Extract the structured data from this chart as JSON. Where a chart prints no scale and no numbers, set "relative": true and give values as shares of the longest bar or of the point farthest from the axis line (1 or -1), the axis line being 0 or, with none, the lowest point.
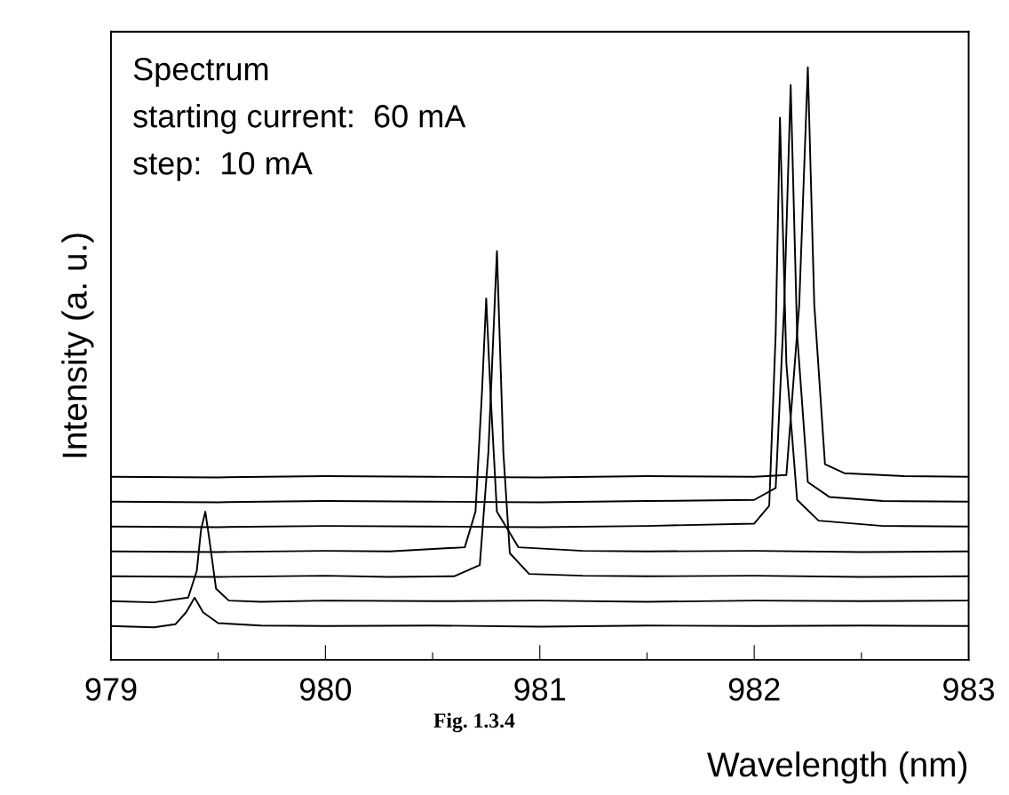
{
  "chart_data": {
    "type": "line",
    "relative": true,
    "xlabel": "Wavelength (nm)",
    "ylabel": "Intensity (a. u.)",
    "xlim": [
      979,
      983
    ],
    "xticks": [
      979,
      {
        "value": 979.5,
        "label": null
      },
      980,
      {
        "value": 980.5,
        "label": null
      },
      981,
      {
        "value": 981.5,
        "label": null
      },
      982,
      {
        "value": 982.5,
        "label": null
      },
      983
    ],
    "grid": false,
    "marker": "none",
    "line_style": "solid",
    "annotations": [
      "Spectrum",
      "starting current:  60 mA",
      "step:  10 mA",
      "Fig. 1.3.4"
    ],
    "series": [
      {
        "color": "#000000",
        "x": [
          979.0,
          979.2,
          979.3,
          979.35,
          979.39,
          979.43,
          979.5,
          979.7,
          980.0,
          980.5,
          981.0,
          981.5,
          982.0,
          982.5,
          983.0
        ],
        "values": [
          0.057,
          0.055,
          0.06,
          0.08,
          0.105,
          0.08,
          0.062,
          0.058,
          0.057,
          0.058,
          0.056,
          0.058,
          0.057,
          0.058,
          0.057
        ]
      },
      {
        "color": "#000000",
        "x": [
          979.0,
          979.2,
          979.36,
          979.4,
          979.42,
          979.44,
          979.46,
          979.49,
          979.55,
          979.7,
          980.0,
          980.5,
          981.0,
          981.5,
          982.0,
          982.5,
          983.0
        ],
        "values": [
          0.099,
          0.097,
          0.105,
          0.15,
          0.22,
          0.25,
          0.2,
          0.12,
          0.1,
          0.098,
          0.1,
          0.099,
          0.1,
          0.098,
          0.1,
          0.099,
          0.1
        ]
      },
      {
        "color": "#000000",
        "x": [
          979.0,
          979.5,
          980.0,
          980.3,
          980.6,
          980.72,
          980.76,
          980.8,
          980.83,
          980.86,
          980.95,
          981.2,
          981.5,
          982.0,
          982.5,
          983.0
        ],
        "values": [
          0.141,
          0.14,
          0.142,
          0.14,
          0.141,
          0.16,
          0.35,
          0.69,
          0.35,
          0.18,
          0.145,
          0.142,
          0.141,
          0.142,
          0.14,
          0.141
        ]
      },
      {
        "color": "#000000",
        "x": [
          979.0,
          979.5,
          980.0,
          980.3,
          980.65,
          980.7,
          980.73,
          980.75,
          980.77,
          980.8,
          980.9,
          981.2,
          981.5,
          982.0,
          982.5,
          983.0
        ],
        "values": [
          0.183,
          0.182,
          0.184,
          0.183,
          0.19,
          0.25,
          0.45,
          0.61,
          0.45,
          0.25,
          0.19,
          0.184,
          0.183,
          0.184,
          0.182,
          0.183
        ]
      },
      {
        "color": "#000000",
        "x": [
          979.0,
          979.5,
          980.0,
          980.5,
          981.0,
          981.5,
          982.0,
          982.07,
          982.1,
          982.12,
          982.15,
          982.2,
          982.3,
          982.6,
          983.0
        ],
        "values": [
          0.225,
          0.224,
          0.226,
          0.225,
          0.224,
          0.226,
          0.23,
          0.26,
          0.55,
          0.915,
          0.5,
          0.27,
          0.235,
          0.226,
          0.225
        ]
      },
      {
        "color": "#000000",
        "x": [
          979.0,
          979.5,
          980.0,
          980.5,
          981.0,
          981.5,
          982.0,
          982.1,
          982.14,
          982.17,
          982.2,
          982.25,
          982.35,
          982.6,
          983.0
        ],
        "values": [
          0.267,
          0.266,
          0.268,
          0.267,
          0.266,
          0.268,
          0.27,
          0.29,
          0.6,
          0.97,
          0.55,
          0.3,
          0.275,
          0.268,
          0.267
        ]
      },
      {
        "color": "#000000",
        "x": [
          979.0,
          979.5,
          980.0,
          980.5,
          981.0,
          981.5,
          982.0,
          982.15,
          982.21,
          982.25,
          982.28,
          982.33,
          982.42,
          982.7,
          983.0
        ],
        "values": [
          0.309,
          0.308,
          0.31,
          0.309,
          0.308,
          0.31,
          0.309,
          0.312,
          0.6,
          1.0,
          0.6,
          0.33,
          0.315,
          0.31,
          0.309
        ]
      }
    ]
  }
}
